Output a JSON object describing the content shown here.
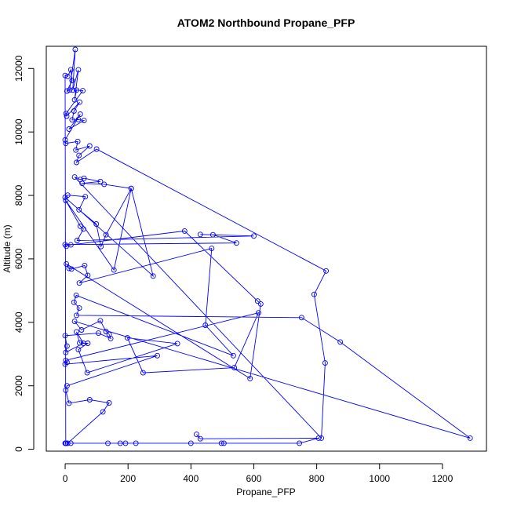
{
  "chart_data": {
    "type": "line",
    "title": "ATOM2 Northbound Propane_PFP",
    "xlabel": "Propane_PFP",
    "ylabel": "Altitude (m)",
    "xlim": [
      -60,
      1340
    ],
    "ylim": [
      -60,
      12700
    ],
    "x_ticks": [
      0,
      200,
      400,
      600,
      800,
      1000,
      1200
    ],
    "y_ticks": [
      0,
      2000,
      4000,
      6000,
      8000,
      10000,
      12000
    ],
    "grid": false,
    "line_color": "#0000ff",
    "marker": "open-circle",
    "series": [
      {
        "points": [
          [
            2,
            190
          ],
          [
            0,
            11780
          ],
          [
            8,
            11750
          ],
          [
            18,
            11960
          ],
          [
            22,
            11620
          ],
          [
            6,
            11290
          ],
          [
            14,
            11320
          ],
          [
            32,
            12600
          ],
          [
            24,
            11320
          ],
          [
            42,
            11960
          ],
          [
            30,
            11010
          ],
          [
            36,
            11320
          ],
          [
            56,
            11300
          ],
          [
            3,
            10580
          ],
          [
            5,
            10500
          ],
          [
            46,
            10940
          ],
          [
            28,
            10660
          ],
          [
            22,
            10380
          ],
          [
            42,
            10390
          ],
          [
            60,
            10360
          ],
          [
            12,
            10090
          ],
          [
            48,
            10560
          ],
          [
            0,
            9750
          ],
          [
            2,
            9640
          ],
          [
            40,
            9700
          ],
          [
            34,
            9430
          ],
          [
            78,
            9560
          ],
          [
            44,
            9260
          ],
          [
            36,
            9040
          ],
          [
            100,
            9460
          ],
          [
            830,
            5620
          ],
          [
            792,
            4880
          ],
          [
            827,
            2720
          ],
          [
            815,
            350
          ],
          [
            30,
            8580
          ],
          [
            48,
            8500
          ],
          [
            60,
            8540
          ],
          [
            112,
            8440
          ],
          [
            54,
            8380
          ],
          [
            124,
            8350
          ],
          [
            210,
            8220
          ],
          [
            280,
            5460
          ],
          [
            0,
            7940
          ],
          [
            8,
            8010
          ],
          [
            64,
            7960
          ],
          [
            44,
            7550
          ],
          [
            99,
            7100
          ],
          [
            114,
            6390
          ],
          [
            130,
            6760
          ],
          [
            210,
            8220
          ],
          [
            155,
            5650
          ],
          [
            2,
            7840
          ],
          [
            48,
            7030
          ],
          [
            58,
            6940
          ],
          [
            38,
            6580
          ],
          [
            600,
            6720
          ],
          [
            430,
            6770
          ],
          [
            470,
            6760
          ],
          [
            545,
            6500
          ],
          [
            0,
            6450
          ],
          [
            4,
            6400
          ],
          [
            18,
            6440
          ],
          [
            380,
            6880
          ],
          [
            612,
            4670
          ],
          [
            622,
            4580
          ],
          [
            588,
            2230
          ],
          [
            4,
            5840
          ],
          [
            12,
            5700
          ],
          [
            20,
            5680
          ],
          [
            62,
            5790
          ],
          [
            72,
            5480
          ],
          [
            45,
            5240
          ],
          [
            466,
            6330
          ],
          [
            446,
            3910
          ],
          [
            535,
            2950
          ],
          [
            35,
            4850
          ],
          [
            28,
            4630
          ],
          [
            45,
            4450
          ],
          [
            36,
            4220
          ],
          [
            752,
            4150
          ],
          [
            875,
            3380
          ],
          [
            1288,
            350
          ],
          [
            30,
            4030
          ],
          [
            52,
            3760
          ],
          [
            112,
            4050
          ],
          [
            130,
            3710
          ],
          [
            140,
            3620
          ],
          [
            145,
            3490
          ],
          [
            106,
            3660
          ],
          [
            0,
            3580
          ],
          [
            6,
            3250
          ],
          [
            2,
            3050
          ],
          [
            58,
            3340
          ],
          [
            36,
            3700
          ],
          [
            46,
            3350
          ],
          [
            72,
            3340
          ],
          [
            42,
            3140
          ],
          [
            70,
            2410
          ],
          [
            357,
            3330
          ],
          [
            198,
            3510
          ],
          [
            248,
            2410
          ],
          [
            538,
            2570
          ],
          [
            615,
            4300
          ],
          [
            2,
            2800
          ],
          [
            6,
            2740
          ],
          [
            0,
            2680
          ],
          [
            293,
            2950
          ],
          [
            6,
            2000
          ],
          [
            2,
            1860
          ],
          [
            12,
            1450
          ],
          [
            78,
            1560
          ],
          [
            140,
            1460
          ],
          [
            120,
            1180
          ],
          [
            8,
            190
          ],
          [
            0,
            190
          ],
          [
            18,
            190
          ],
          [
            3,
            190
          ],
          [
            136,
            190
          ],
          [
            175,
            190
          ],
          [
            192,
            190
          ],
          [
            225,
            190
          ],
          [
            400,
            190
          ],
          [
            497,
            190
          ],
          [
            505,
            190
          ],
          [
            745,
            190
          ],
          [
            806,
            350
          ],
          [
            430,
            330
          ],
          [
            418,
            470
          ]
        ]
      }
    ]
  }
}
